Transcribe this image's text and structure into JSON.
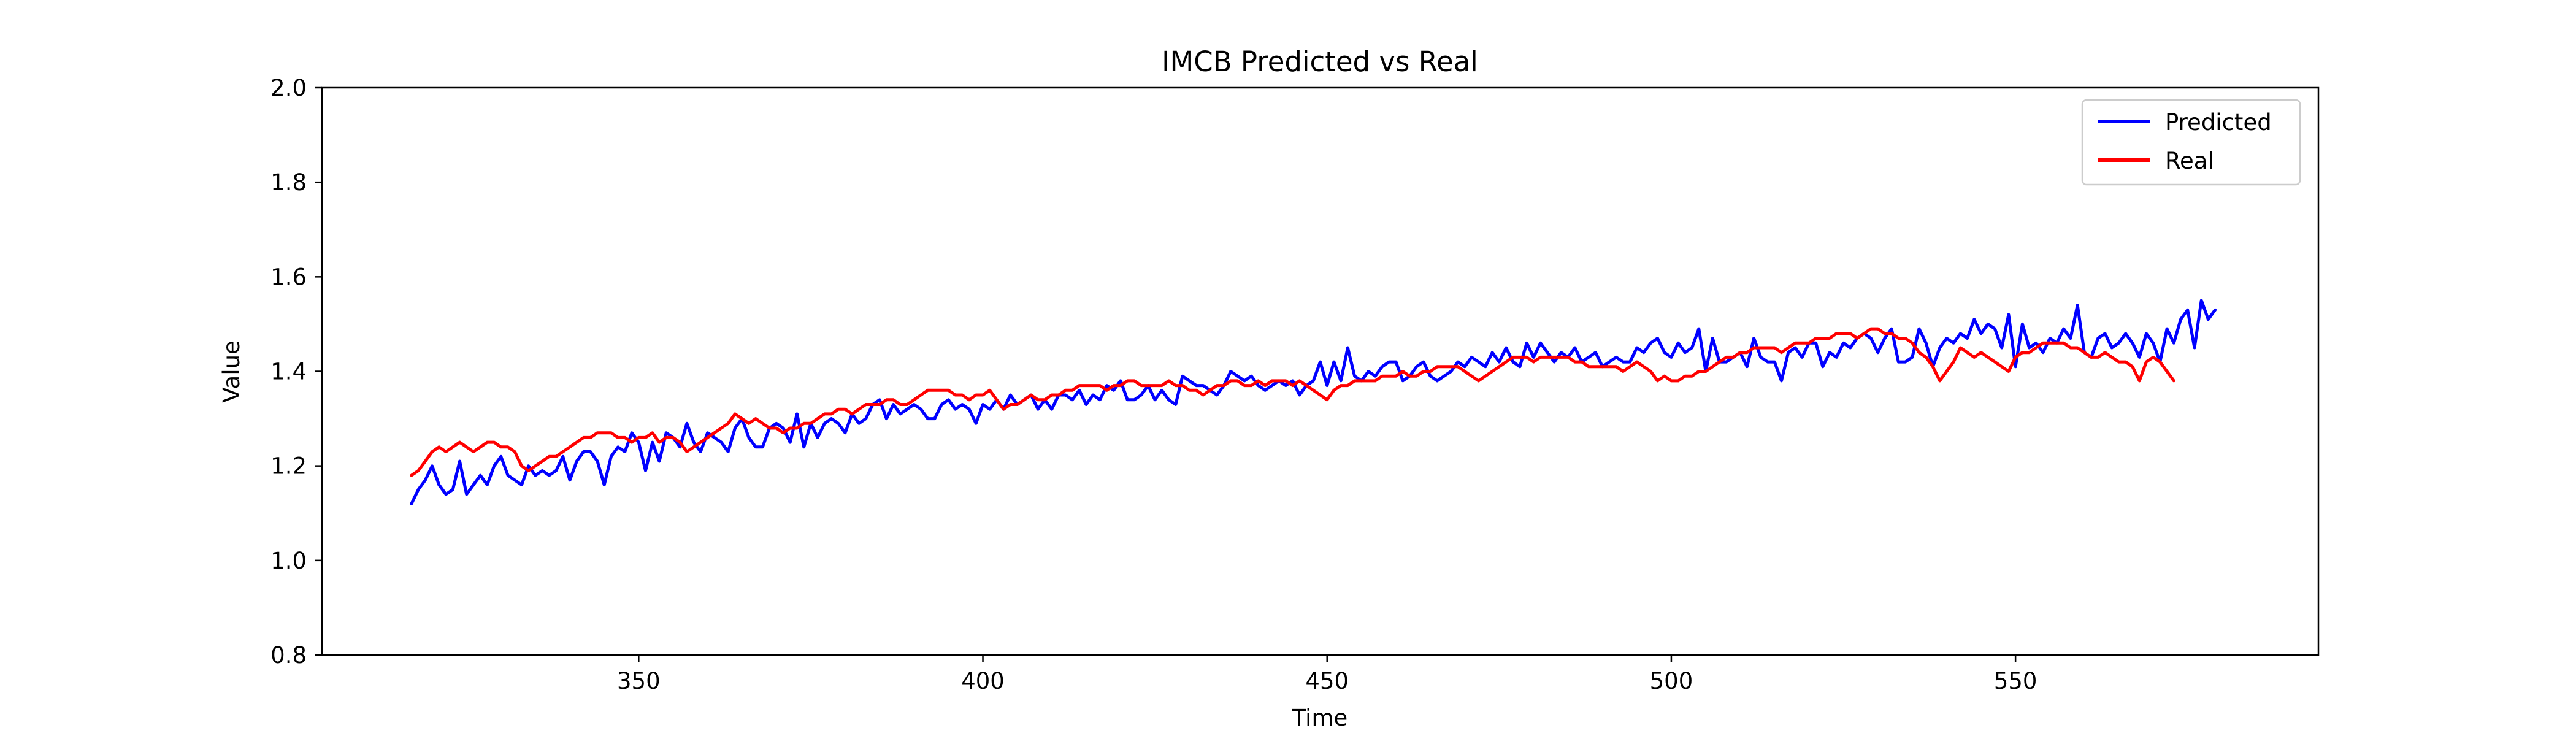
{
  "chart_data": {
    "type": "line",
    "title": "IMCB Predicted vs Real",
    "xlabel": "Time",
    "ylabel": "Value",
    "xlim": [
      304,
      594
    ],
    "ylim": [
      0.8,
      2.0
    ],
    "x_ticks": [
      350,
      400,
      450,
      500,
      550
    ],
    "x_tick_labels": [
      "350",
      "400",
      "450",
      "500",
      "550"
    ],
    "y_ticks": [
      0.8,
      1.0,
      1.2,
      1.4,
      1.6,
      1.8,
      2.0
    ],
    "y_tick_labels": [
      "0.8",
      "1.0",
      "1.2",
      "1.4",
      "1.6",
      "1.8",
      "2.0"
    ],
    "grid": false,
    "legend_position": "top-right",
    "x_start": 317,
    "x_step": 1,
    "series": [
      {
        "name": "Predicted",
        "color": "#0000ff",
        "values": [
          1.12,
          1.15,
          1.17,
          1.2,
          1.16,
          1.14,
          1.15,
          1.21,
          1.14,
          1.16,
          1.18,
          1.16,
          1.2,
          1.22,
          1.18,
          1.17,
          1.16,
          1.2,
          1.18,
          1.19,
          1.18,
          1.19,
          1.22,
          1.17,
          1.21,
          1.23,
          1.23,
          1.21,
          1.16,
          1.22,
          1.24,
          1.23,
          1.27,
          1.25,
          1.19,
          1.25,
          1.21,
          1.27,
          1.26,
          1.24,
          1.29,
          1.25,
          1.23,
          1.27,
          1.26,
          1.25,
          1.23,
          1.28,
          1.3,
          1.26,
          1.24,
          1.24,
          1.28,
          1.29,
          1.28,
          1.25,
          1.31,
          1.24,
          1.29,
          1.26,
          1.29,
          1.3,
          1.29,
          1.27,
          1.31,
          1.29,
          1.3,
          1.33,
          1.34,
          1.3,
          1.33,
          1.31,
          1.32,
          1.33,
          1.32,
          1.3,
          1.3,
          1.33,
          1.34,
          1.32,
          1.33,
          1.32,
          1.29,
          1.33,
          1.32,
          1.34,
          1.32,
          1.35,
          1.33,
          1.34,
          1.35,
          1.32,
          1.34,
          1.32,
          1.35,
          1.35,
          1.34,
          1.36,
          1.33,
          1.35,
          1.34,
          1.37,
          1.36,
          1.38,
          1.34,
          1.34,
          1.35,
          1.37,
          1.34,
          1.36,
          1.34,
          1.33,
          1.39,
          1.38,
          1.37,
          1.37,
          1.36,
          1.35,
          1.37,
          1.4,
          1.39,
          1.38,
          1.39,
          1.37,
          1.36,
          1.37,
          1.38,
          1.37,
          1.38,
          1.35,
          1.37,
          1.38,
          1.42,
          1.37,
          1.42,
          1.38,
          1.45,
          1.39,
          1.38,
          1.4,
          1.39,
          1.41,
          1.42,
          1.42,
          1.38,
          1.39,
          1.41,
          1.42,
          1.39,
          1.38,
          1.39,
          1.4,
          1.42,
          1.41,
          1.43,
          1.42,
          1.41,
          1.44,
          1.42,
          1.45,
          1.42,
          1.41,
          1.46,
          1.43,
          1.46,
          1.44,
          1.42,
          1.44,
          1.43,
          1.45,
          1.42,
          1.43,
          1.44,
          1.41,
          1.42,
          1.43,
          1.42,
          1.42,
          1.45,
          1.44,
          1.46,
          1.47,
          1.44,
          1.43,
          1.46,
          1.44,
          1.45,
          1.49,
          1.4,
          1.47,
          1.42,
          1.42,
          1.43,
          1.44,
          1.41,
          1.47,
          1.43,
          1.42,
          1.42,
          1.38,
          1.44,
          1.45,
          1.43,
          1.46,
          1.46,
          1.41,
          1.44,
          1.43,
          1.46,
          1.45,
          1.47,
          1.48,
          1.47,
          1.44,
          1.47,
          1.49,
          1.42,
          1.42,
          1.43,
          1.49,
          1.46,
          1.41,
          1.45,
          1.47,
          1.46,
          1.48,
          1.47,
          1.51,
          1.48,
          1.5,
          1.49,
          1.45,
          1.52,
          1.41,
          1.5,
          1.45,
          1.46,
          1.44,
          1.47,
          1.46,
          1.49,
          1.47,
          1.54,
          1.44,
          1.43,
          1.47,
          1.48,
          1.45,
          1.46,
          1.48,
          1.46,
          1.43,
          1.48,
          1.46,
          1.42,
          1.49,
          1.46,
          1.51,
          1.53,
          1.45,
          1.55,
          1.51,
          1.53
        ]
      },
      {
        "name": "Real",
        "color": "#ff0000",
        "values": [
          1.18,
          1.19,
          1.21,
          1.23,
          1.24,
          1.23,
          1.24,
          1.25,
          1.24,
          1.23,
          1.24,
          1.25,
          1.25,
          1.24,
          1.24,
          1.23,
          1.2,
          1.19,
          1.2,
          1.21,
          1.22,
          1.22,
          1.23,
          1.24,
          1.25,
          1.26,
          1.26,
          1.27,
          1.27,
          1.27,
          1.26,
          1.26,
          1.25,
          1.26,
          1.26,
          1.27,
          1.25,
          1.26,
          1.26,
          1.25,
          1.23,
          1.24,
          1.25,
          1.26,
          1.27,
          1.28,
          1.29,
          1.31,
          1.3,
          1.29,
          1.3,
          1.29,
          1.28,
          1.28,
          1.27,
          1.28,
          1.28,
          1.29,
          1.29,
          1.3,
          1.31,
          1.31,
          1.32,
          1.32,
          1.31,
          1.32,
          1.33,
          1.33,
          1.33,
          1.34,
          1.34,
          1.33,
          1.33,
          1.34,
          1.35,
          1.36,
          1.36,
          1.36,
          1.36,
          1.35,
          1.35,
          1.34,
          1.35,
          1.35,
          1.36,
          1.34,
          1.32,
          1.33,
          1.33,
          1.34,
          1.35,
          1.34,
          1.34,
          1.35,
          1.35,
          1.36,
          1.36,
          1.37,
          1.37,
          1.37,
          1.37,
          1.36,
          1.37,
          1.37,
          1.38,
          1.38,
          1.37,
          1.37,
          1.37,
          1.37,
          1.38,
          1.37,
          1.37,
          1.36,
          1.36,
          1.35,
          1.36,
          1.37,
          1.37,
          1.38,
          1.38,
          1.37,
          1.37,
          1.38,
          1.37,
          1.38,
          1.38,
          1.38,
          1.37,
          1.38,
          1.37,
          1.36,
          1.35,
          1.34,
          1.36,
          1.37,
          1.37,
          1.38,
          1.38,
          1.38,
          1.38,
          1.39,
          1.39,
          1.39,
          1.4,
          1.39,
          1.39,
          1.4,
          1.4,
          1.41,
          1.41,
          1.41,
          1.41,
          1.4,
          1.39,
          1.38,
          1.39,
          1.4,
          1.41,
          1.42,
          1.43,
          1.43,
          1.43,
          1.42,
          1.43,
          1.43,
          1.43,
          1.43,
          1.43,
          1.42,
          1.42,
          1.41,
          1.41,
          1.41,
          1.41,
          1.41,
          1.4,
          1.41,
          1.42,
          1.41,
          1.4,
          1.38,
          1.39,
          1.38,
          1.38,
          1.39,
          1.39,
          1.4,
          1.4,
          1.41,
          1.42,
          1.43,
          1.43,
          1.44,
          1.44,
          1.45,
          1.45,
          1.45,
          1.45,
          1.44,
          1.45,
          1.46,
          1.46,
          1.46,
          1.47,
          1.47,
          1.47,
          1.48,
          1.48,
          1.48,
          1.47,
          1.48,
          1.49,
          1.49,
          1.48,
          1.48,
          1.47,
          1.47,
          1.46,
          1.44,
          1.43,
          1.41,
          1.38,
          1.4,
          1.42,
          1.45,
          1.44,
          1.43,
          1.44,
          1.43,
          1.42,
          1.41,
          1.4,
          1.43,
          1.44,
          1.44,
          1.45,
          1.46,
          1.46,
          1.46,
          1.46,
          1.45,
          1.45,
          1.44,
          1.43,
          1.43,
          1.44,
          1.43,
          1.42,
          1.42,
          1.41,
          1.38,
          1.42,
          1.43,
          1.42,
          1.4,
          1.38
        ]
      }
    ]
  }
}
